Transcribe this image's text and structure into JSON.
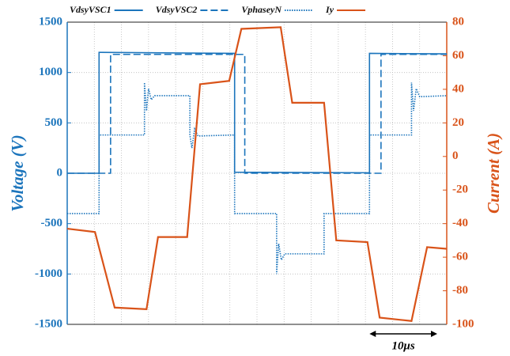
{
  "chart_data": {
    "type": "line",
    "ylabel": "Voltage (V)",
    "y2label": "Current (A)",
    "xlim": [
      0,
      56
    ],
    "xticks": [
      0,
      4,
      8,
      12,
      16,
      20,
      24,
      28,
      32,
      36,
      40,
      44,
      48,
      52,
      56
    ],
    "ylim": [
      -1500,
      1500
    ],
    "yticks": [
      -1500,
      -1000,
      -500,
      0,
      500,
      1000,
      1500
    ],
    "y2lim": [
      -100,
      80
    ],
    "y2ticks": [
      -100,
      -80,
      -60,
      -40,
      -20,
      0,
      20,
      40,
      60,
      80
    ],
    "grid": true,
    "axis_color": "#1c75bc",
    "axis2_color": "#d95319",
    "series": [
      {
        "name": "VdsyVSC1",
        "color": "#1c75bc",
        "style": "solid",
        "x": [
          0,
          4.7,
          4.7,
          24.7,
          24.7,
          44.6,
          44.6,
          56
        ],
        "values": [
          0,
          0,
          1200,
          1190,
          10,
          5,
          1190,
          1185
        ]
      },
      {
        "name": "VdsyVSC2",
        "color": "#1c75bc",
        "style": "dashed",
        "x": [
          0,
          6.4,
          6.4,
          26.2,
          26.2,
          46.3,
          46.3,
          56
        ],
        "values": [
          0,
          0,
          1180,
          1180,
          0,
          0,
          1180,
          1180
        ]
      },
      {
        "name": "VphaseyN",
        "color": "#1c75bc",
        "style": "dotted",
        "x": [
          0,
          4.7,
          4.7,
          11.4,
          11.4,
          11.7,
          12.0,
          12.4,
          12.9,
          18.1,
          18.1,
          18.4,
          18.8,
          19.3,
          24.7,
          24.7,
          30.9,
          30.9,
          31.2,
          31.6,
          32.1,
          37.9,
          37.9,
          44.6,
          44.6,
          50.8,
          50.8,
          51.1,
          51.5,
          52.0,
          56
        ],
        "values": [
          -400,
          -400,
          380,
          380,
          900,
          620,
          840,
          730,
          770,
          770,
          380,
          250,
          440,
          370,
          380,
          -400,
          -400,
          -1000,
          -700,
          -860,
          -800,
          -800,
          -400,
          -400,
          380,
          380,
          900,
          620,
          840,
          760,
          770
        ]
      },
      {
        "name": "Iy",
        "color": "#d95319",
        "style": "solid",
        "axis": "y2",
        "x": [
          0,
          4.1,
          7,
          11.7,
          13.4,
          17.7,
          19.6,
          23.9,
          25.7,
          31.5,
          33.2,
          37.9,
          39.7,
          44.3,
          46.1,
          50.8,
          53.1,
          56
        ],
        "values": [
          -43,
          -45,
          -90,
          -91,
          -48,
          -48,
          43,
          45,
          76,
          77,
          32,
          32,
          -50,
          -51,
          -96,
          -98,
          -54,
          -55
        ]
      }
    ],
    "annotation": {
      "text": "10μs",
      "x": [
        44.6,
        54.6
      ]
    }
  }
}
